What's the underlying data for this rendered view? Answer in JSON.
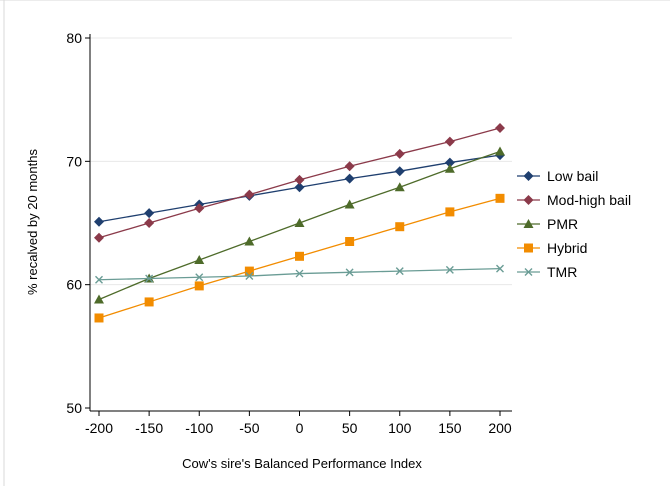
{
  "chart_data": {
    "type": "line",
    "title": "",
    "xlabel": "Cow's sire's Balanced Performance Index",
    "ylabel": "% recalved by 20 months",
    "xlim": [
      -200,
      200
    ],
    "ylim": [
      50,
      80
    ],
    "x": [
      -200,
      -150,
      -100,
      -50,
      0,
      50,
      100,
      150,
      200
    ],
    "x_ticks": [
      -200,
      -150,
      -100,
      -50,
      0,
      50,
      100,
      150,
      200
    ],
    "y_ticks": [
      50,
      60,
      70,
      80
    ],
    "grid": true,
    "legend_position": "right",
    "series": [
      {
        "name": "Low bail",
        "color": "#1f3f6f",
        "marker": "diamond",
        "values": [
          65.1,
          65.8,
          66.5,
          67.2,
          67.9,
          68.6,
          69.2,
          69.9,
          70.5
        ]
      },
      {
        "name": "Mod-high bail",
        "color": "#8b3a4a",
        "marker": "diamond",
        "values": [
          63.8,
          65.0,
          66.2,
          67.3,
          68.5,
          69.6,
          70.6,
          71.6,
          72.7
        ]
      },
      {
        "name": "PMR",
        "color": "#4e6b2a",
        "marker": "triangle",
        "values": [
          58.8,
          60.5,
          62.0,
          63.5,
          65.0,
          66.5,
          67.9,
          69.4,
          70.8
        ]
      },
      {
        "name": "Hybrid",
        "color": "#f28c00",
        "marker": "square",
        "values": [
          57.3,
          58.6,
          59.9,
          61.1,
          62.3,
          63.5,
          64.7,
          65.9,
          67.0
        ]
      },
      {
        "name": "TMR",
        "color": "#6a9c95",
        "marker": "x",
        "values": [
          60.4,
          60.5,
          60.6,
          60.7,
          60.9,
          61.0,
          61.1,
          61.2,
          61.3
        ]
      }
    ]
  }
}
